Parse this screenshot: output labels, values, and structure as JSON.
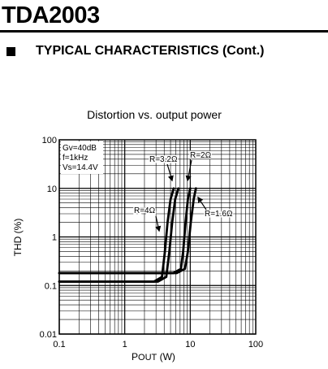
{
  "header": {
    "part_number": "TDA2003",
    "section_title": "TYPICAL CHARACTERISTICS (Cont.)"
  },
  "chart_data": {
    "type": "line",
    "title": "Distortion vs. output power",
    "xlabel_main": "P",
    "xlabel_sub": "OUT",
    "xlabel_unit": " (W)",
    "ylabel": "THD (%)",
    "x_scale": "log",
    "y_scale": "log",
    "xlim": [
      0.1,
      100
    ],
    "ylim": [
      0.01,
      100
    ],
    "x_ticks": [
      "0.1",
      "1",
      "10",
      "100"
    ],
    "y_ticks": [
      "0.01",
      "0.1",
      "1",
      "10",
      "100"
    ],
    "grid": true,
    "conditions": [
      "Gv=40dB",
      "f=1kHz",
      "Vs=14.4V"
    ],
    "series": [
      {
        "name": "R=4Ω",
        "x": [
          0.1,
          2.8,
          3.7,
          4.1,
          4.5,
          5.0,
          5.6
        ],
        "y": [
          0.12,
          0.12,
          0.15,
          0.5,
          2.0,
          6.0,
          10.0
        ]
      },
      {
        "name": "R=3.2Ω",
        "x": [
          0.1,
          3.2,
          4.3,
          4.8,
          5.3,
          5.9,
          6.6
        ],
        "y": [
          0.12,
          0.12,
          0.15,
          0.5,
          2.0,
          6.0,
          10.0
        ]
      },
      {
        "name": "R=2Ω",
        "x": [
          0.1,
          5.5,
          7.2,
          7.8,
          8.5,
          9.2,
          10.0
        ],
        "y": [
          0.18,
          0.18,
          0.22,
          0.5,
          2.0,
          6.0,
          10.0
        ]
      },
      {
        "name": "R=1.6Ω",
        "x": [
          0.1,
          6.2,
          8.3,
          9.2,
          10.2,
          11.3,
          12.2
        ],
        "y": [
          0.18,
          0.18,
          0.22,
          0.5,
          2.0,
          6.0,
          10.0
        ]
      }
    ]
  },
  "colors": {
    "line": "#000000",
    "grid": "#000000",
    "background": "#ffffff"
  }
}
